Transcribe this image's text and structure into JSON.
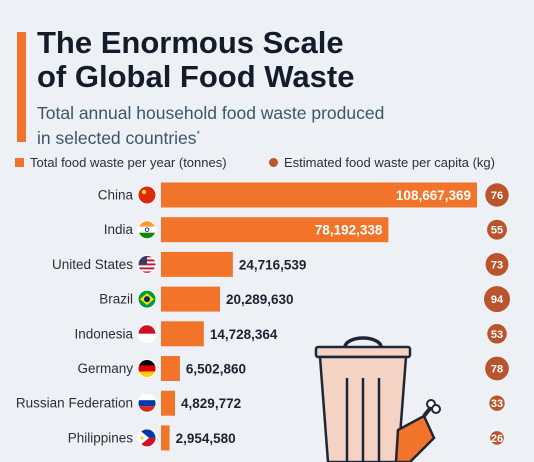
{
  "header": {
    "title_line1": "The Enormous Scale",
    "title_line2": "of Global Food Waste",
    "subtitle_line1": "Total annual household food waste produced",
    "subtitle_line2": "in selected countries",
    "subtitle_mark": "*"
  },
  "colors": {
    "bar": "#f2742a",
    "bubble": "#b9542c",
    "accent": "#f2742a",
    "background": "#edf1f6"
  },
  "chart_data": {
    "type": "bar",
    "orientation": "horizontal",
    "title": "The Enormous Scale of Global Food Waste",
    "subtitle": "Total annual household food waste produced in selected countries*",
    "legend_position": "top",
    "grid": false,
    "categories": [
      "China",
      "India",
      "United States",
      "Brazil",
      "Indonesia",
      "Germany",
      "Russian Federation",
      "Philippines"
    ],
    "series": [
      {
        "name": "Total food waste per year (tonnes)",
        "type": "bar",
        "values": [
          108667369,
          78192338,
          24716539,
          20289630,
          14728364,
          6502860,
          4829772,
          2954580
        ],
        "labels": [
          "108,667,369",
          "78,192,338",
          "24,716,539",
          "20,289,630",
          "14,728,364",
          "6,502,860",
          "4,829,772",
          "2,954,580"
        ]
      },
      {
        "name": "Estimated food waste per capita (kg)",
        "type": "bubble",
        "values": [
          76,
          55,
          73,
          94,
          53,
          78,
          33,
          26
        ]
      }
    ],
    "xlim": [
      0,
      108667369
    ]
  },
  "icons": {
    "flags": [
      "china-flag-icon",
      "india-flag-icon",
      "usa-flag-icon",
      "brazil-flag-icon",
      "indonesia-flag-icon",
      "germany-flag-icon",
      "russia-flag-icon",
      "philippines-flag-icon"
    ],
    "illustration": "trash-bin-icon"
  }
}
